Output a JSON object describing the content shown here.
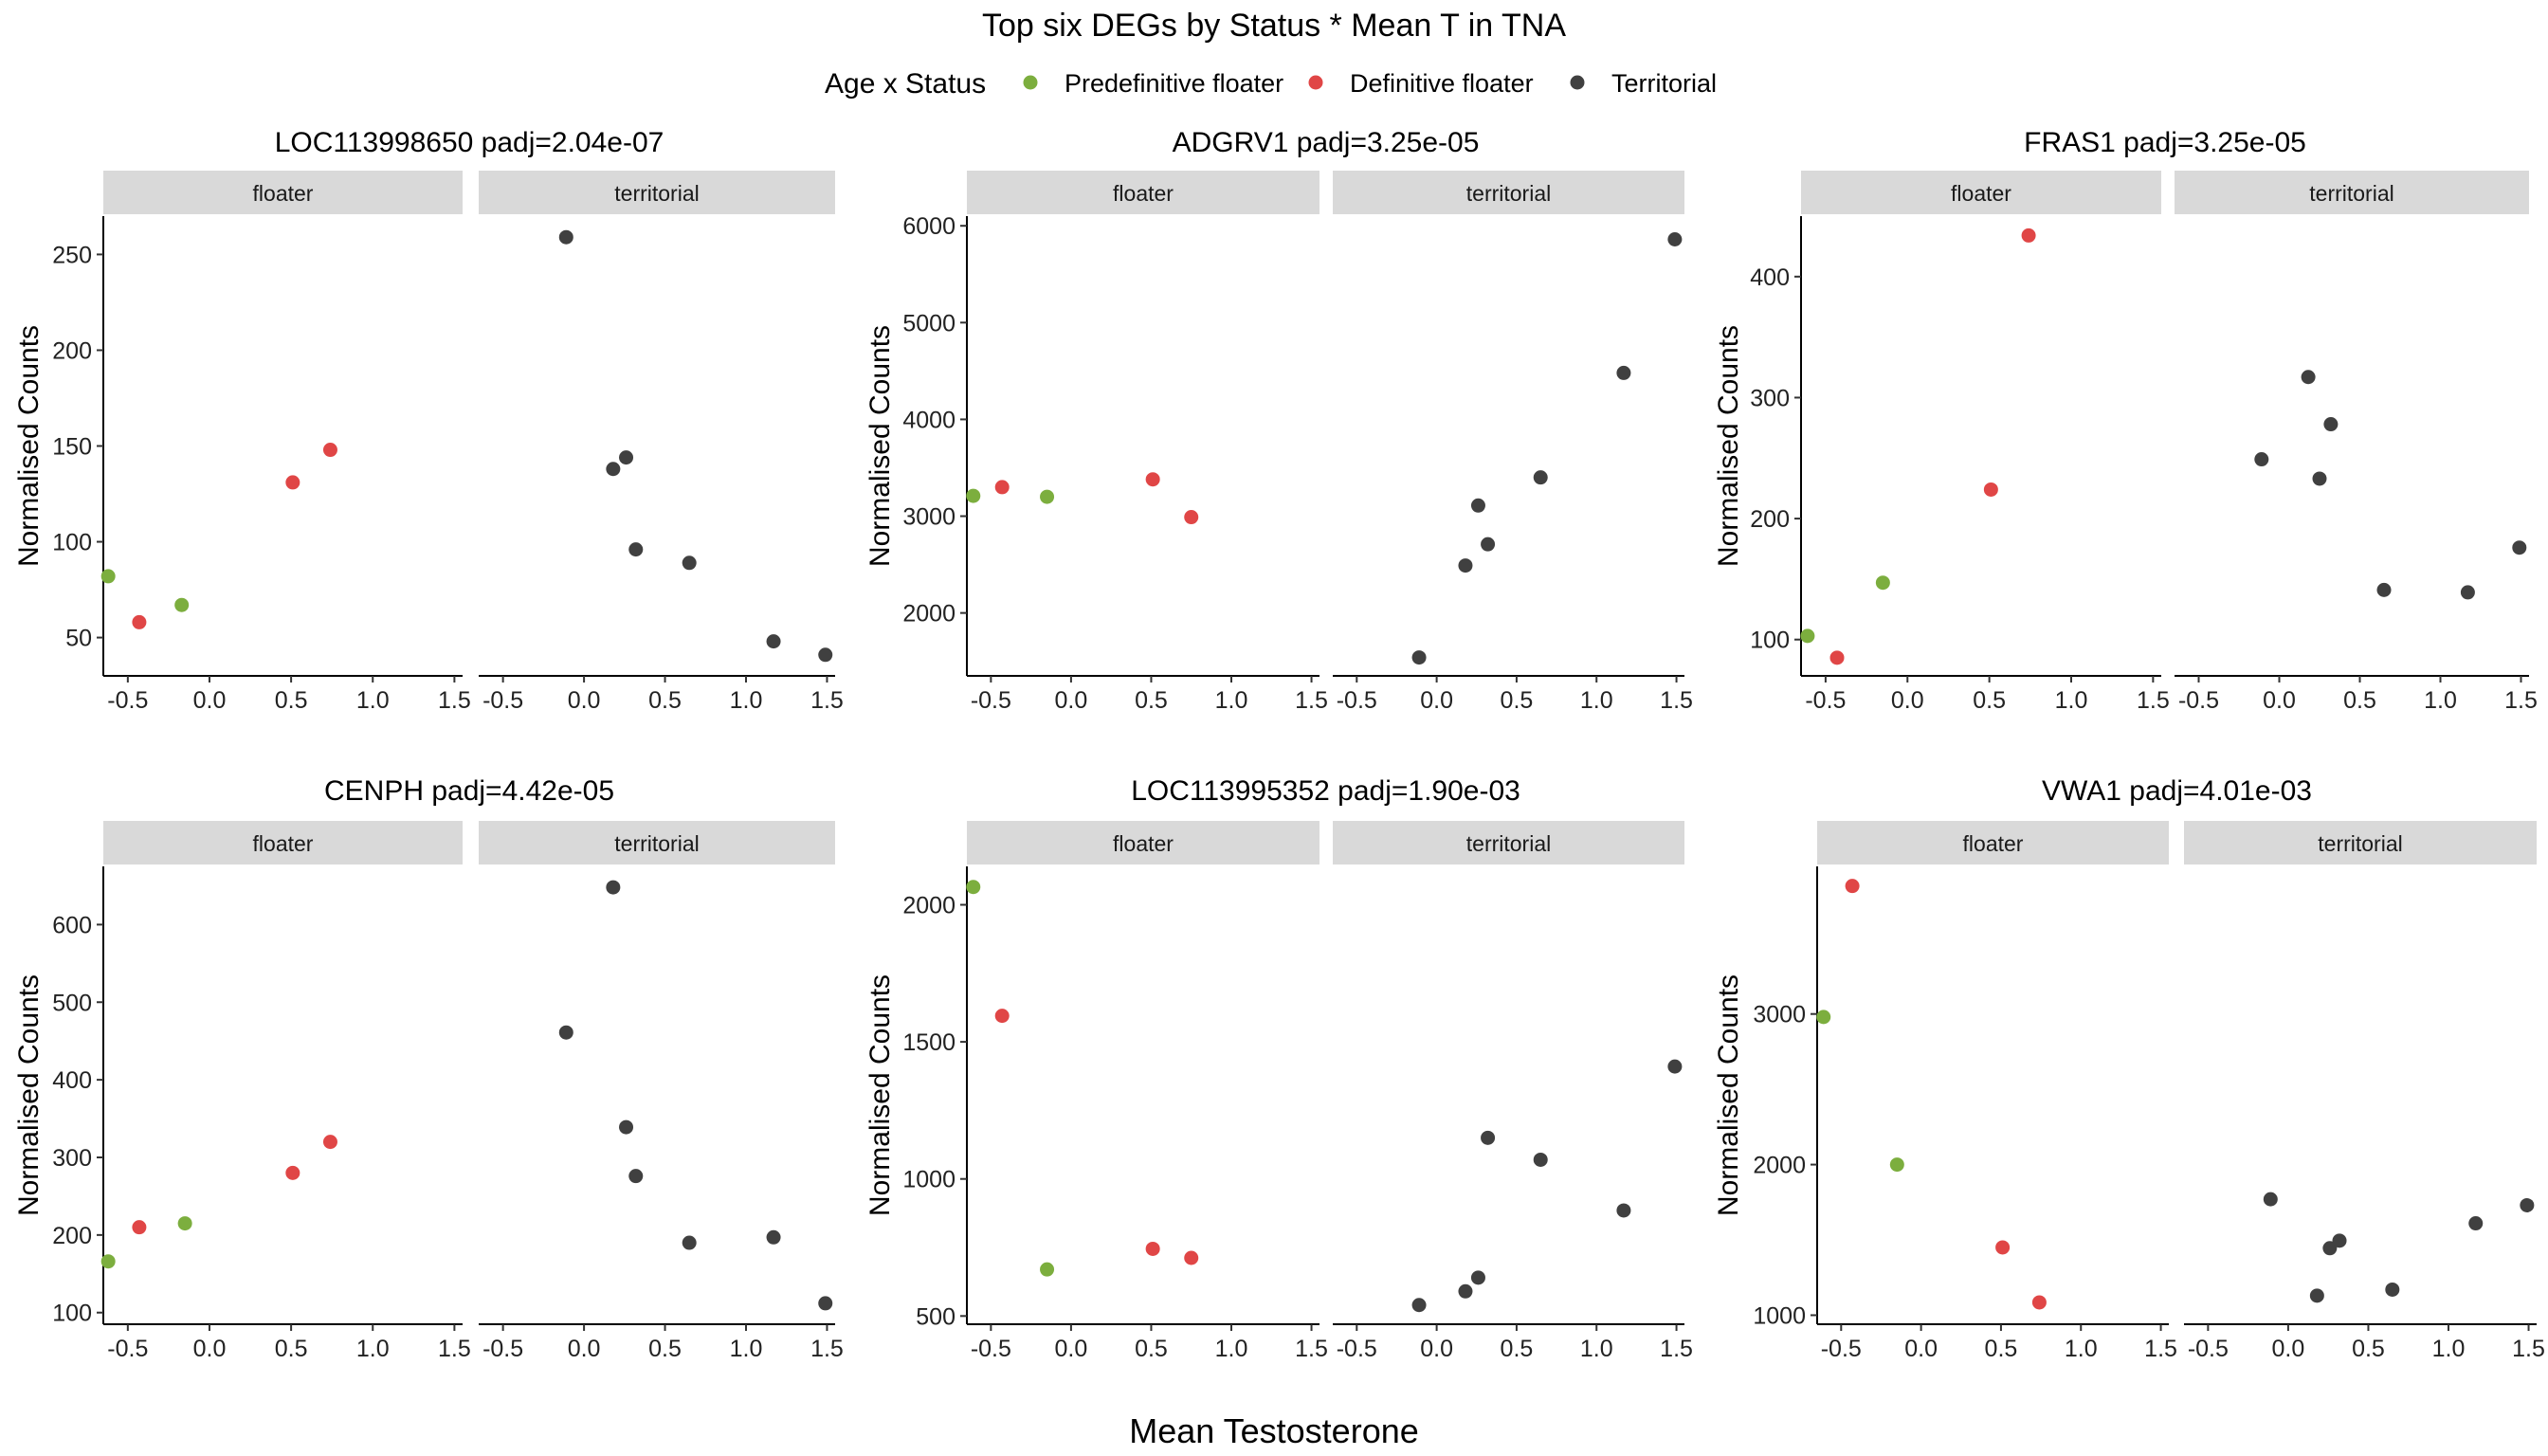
{
  "title": "Top six DEGs by Status * Mean T in TNA",
  "legend": {
    "title": "Age x Status",
    "placement": "top-center",
    "items": [
      {
        "label": "Predefinitive floater",
        "color": "#7cae3e"
      },
      {
        "label": "Definitive floater",
        "color": "#e04646"
      },
      {
        "label": "Territorial",
        "color": "#404040"
      }
    ]
  },
  "xlabel": "Mean Testosterone",
  "chart_data": [
    {
      "type": "scatter",
      "title": "LOC113998650 padj=2.04e-07",
      "ylabel": "Normalised Counts",
      "xlabel": "Mean Testosterone",
      "xlim": [
        -0.65,
        1.55
      ],
      "xticks": [
        -0.5,
        0.0,
        0.5,
        1.0,
        1.5
      ],
      "xtick_labels": [
        "-0.5",
        "0.0",
        "0.5",
        "1.0",
        "1.5"
      ],
      "ylim": [
        30,
        270
      ],
      "yticks": [
        50,
        100,
        150,
        200,
        250
      ],
      "facets": [
        {
          "label": "floater",
          "points": [
            {
              "x": -0.62,
              "y": 82,
              "group": "Predefinitive floater"
            },
            {
              "x": -0.43,
              "y": 58,
              "group": "Definitive floater"
            },
            {
              "x": -0.17,
              "y": 67,
              "group": "Predefinitive floater"
            },
            {
              "x": 0.51,
              "y": 131,
              "group": "Definitive floater"
            },
            {
              "x": 0.74,
              "y": 148,
              "group": "Definitive floater"
            }
          ]
        },
        {
          "label": "territorial",
          "points": [
            {
              "x": -0.11,
              "y": 259,
              "group": "Territorial"
            },
            {
              "x": 0.18,
              "y": 138,
              "group": "Territorial"
            },
            {
              "x": 0.26,
              "y": 144,
              "group": "Territorial"
            },
            {
              "x": 0.32,
              "y": 96,
              "group": "Territorial"
            },
            {
              "x": 0.65,
              "y": 89,
              "group": "Territorial"
            },
            {
              "x": 1.17,
              "y": 48,
              "group": "Territorial"
            },
            {
              "x": 1.49,
              "y": 41,
              "group": "Territorial"
            }
          ]
        }
      ]
    },
    {
      "type": "scatter",
      "title": "ADGRV1 padj=3.25e-05",
      "ylabel": "Normalised Counts",
      "xlabel": "Mean Testosterone",
      "xlim": [
        -0.65,
        1.55
      ],
      "xticks": [
        -0.5,
        0.0,
        0.5,
        1.0,
        1.5
      ],
      "xtick_labels": [
        "-0.5",
        "0.0",
        "0.5",
        "1.0",
        "1.5"
      ],
      "ylim": [
        1350,
        6100
      ],
      "yticks": [
        2000,
        3000,
        4000,
        5000,
        6000
      ],
      "facets": [
        {
          "label": "floater",
          "points": [
            {
              "x": -0.61,
              "y": 3210,
              "group": "Predefinitive floater"
            },
            {
              "x": -0.43,
              "y": 3300,
              "group": "Definitive floater"
            },
            {
              "x": -0.15,
              "y": 3200,
              "group": "Predefinitive floater"
            },
            {
              "x": 0.51,
              "y": 3380,
              "group": "Definitive floater"
            },
            {
              "x": 0.75,
              "y": 2990,
              "group": "Definitive floater"
            }
          ]
        },
        {
          "label": "territorial",
          "points": [
            {
              "x": -0.11,
              "y": 1540,
              "group": "Territorial"
            },
            {
              "x": 0.18,
              "y": 2490,
              "group": "Territorial"
            },
            {
              "x": 0.26,
              "y": 3110,
              "group": "Territorial"
            },
            {
              "x": 0.32,
              "y": 2710,
              "group": "Territorial"
            },
            {
              "x": 0.65,
              "y": 3400,
              "group": "Territorial"
            },
            {
              "x": 1.17,
              "y": 4480,
              "group": "Territorial"
            },
            {
              "x": 1.49,
              "y": 5860,
              "group": "Territorial"
            }
          ]
        }
      ]
    },
    {
      "type": "scatter",
      "title": "FRAS1 padj=3.25e-05",
      "ylabel": "Normalised Counts",
      "xlabel": "Mean Testosterone",
      "xlim": [
        -0.65,
        1.55
      ],
      "xticks": [
        -0.5,
        0.0,
        0.5,
        1.0,
        1.5
      ],
      "xtick_labels": [
        "-0.5",
        "0.0",
        "0.5",
        "1.0",
        "1.5"
      ],
      "ylim": [
        70,
        450
      ],
      "yticks": [
        100,
        200,
        300,
        400
      ],
      "facets": [
        {
          "label": "floater",
          "points": [
            {
              "x": -0.61,
              "y": 103,
              "group": "Predefinitive floater"
            },
            {
              "x": -0.43,
              "y": 85,
              "group": "Definitive floater"
            },
            {
              "x": -0.15,
              "y": 147,
              "group": "Predefinitive floater"
            },
            {
              "x": 0.51,
              "y": 224,
              "group": "Definitive floater"
            },
            {
              "x": 0.74,
              "y": 434,
              "group": "Definitive floater"
            }
          ]
        },
        {
          "label": "territorial",
          "points": [
            {
              "x": -0.11,
              "y": 249,
              "group": "Territorial"
            },
            {
              "x": 0.18,
              "y": 317,
              "group": "Territorial"
            },
            {
              "x": 0.25,
              "y": 233,
              "group": "Territorial"
            },
            {
              "x": 0.32,
              "y": 278,
              "group": "Territorial"
            },
            {
              "x": 0.65,
              "y": 141,
              "group": "Territorial"
            },
            {
              "x": 1.17,
              "y": 139,
              "group": "Territorial"
            },
            {
              "x": 1.49,
              "y": 176,
              "group": "Territorial"
            }
          ]
        }
      ]
    },
    {
      "type": "scatter",
      "title": "CENPH padj=4.42e-05",
      "ylabel": "Normalised Counts",
      "xlabel": "Mean Testosterone",
      "xlim": [
        -0.65,
        1.55
      ],
      "xticks": [
        -0.5,
        0.0,
        0.5,
        1.0,
        1.5
      ],
      "xtick_labels": [
        "-0.5",
        "0.0",
        "0.5",
        "1.0",
        "1.5"
      ],
      "ylim": [
        85,
        675
      ],
      "yticks": [
        100,
        200,
        300,
        400,
        500,
        600
      ],
      "facets": [
        {
          "label": "floater",
          "points": [
            {
              "x": -0.62,
              "y": 166,
              "group": "Predefinitive floater"
            },
            {
              "x": -0.43,
              "y": 210,
              "group": "Definitive floater"
            },
            {
              "x": -0.15,
              "y": 215,
              "group": "Predefinitive floater"
            },
            {
              "x": 0.51,
              "y": 280,
              "group": "Definitive floater"
            },
            {
              "x": 0.74,
              "y": 320,
              "group": "Definitive floater"
            }
          ]
        },
        {
          "label": "territorial",
          "points": [
            {
              "x": -0.11,
              "y": 461,
              "group": "Territorial"
            },
            {
              "x": 0.18,
              "y": 648,
              "group": "Territorial"
            },
            {
              "x": 0.26,
              "y": 339,
              "group": "Territorial"
            },
            {
              "x": 0.32,
              "y": 276,
              "group": "Territorial"
            },
            {
              "x": 0.65,
              "y": 190,
              "group": "Territorial"
            },
            {
              "x": 1.17,
              "y": 197,
              "group": "Territorial"
            },
            {
              "x": 1.49,
              "y": 112,
              "group": "Territorial"
            }
          ]
        }
      ]
    },
    {
      "type": "scatter",
      "title": "LOC113995352 padj=1.90e-03",
      "ylabel": "Normalised Counts",
      "xlabel": "Mean Testosterone",
      "xlim": [
        -0.65,
        1.55
      ],
      "xticks": [
        -0.5,
        0.0,
        0.5,
        1.0,
        1.5
      ],
      "xtick_labels": [
        "-0.5",
        "0.0",
        "0.5",
        "1.0",
        "1.5"
      ],
      "ylim": [
        470,
        2140
      ],
      "yticks": [
        500,
        1000,
        1500,
        2000
      ],
      "facets": [
        {
          "label": "floater",
          "points": [
            {
              "x": -0.61,
              "y": 2065,
              "group": "Predefinitive floater"
            },
            {
              "x": -0.43,
              "y": 1595,
              "group": "Definitive floater"
            },
            {
              "x": -0.15,
              "y": 670,
              "group": "Predefinitive floater"
            },
            {
              "x": 0.51,
              "y": 745,
              "group": "Definitive floater"
            },
            {
              "x": 0.75,
              "y": 712,
              "group": "Definitive floater"
            }
          ]
        },
        {
          "label": "territorial",
          "points": [
            {
              "x": -0.11,
              "y": 540,
              "group": "Territorial"
            },
            {
              "x": 0.18,
              "y": 590,
              "group": "Territorial"
            },
            {
              "x": 0.26,
              "y": 640,
              "group": "Territorial"
            },
            {
              "x": 0.32,
              "y": 1150,
              "group": "Territorial"
            },
            {
              "x": 0.65,
              "y": 1070,
              "group": "Territorial"
            },
            {
              "x": 1.17,
              "y": 885,
              "group": "Territorial"
            },
            {
              "x": 1.49,
              "y": 1410,
              "group": "Territorial"
            }
          ]
        }
      ]
    },
    {
      "type": "scatter",
      "title": "VWA1 padj=4.01e-03",
      "ylabel": "Normalised Counts",
      "xlabel": "Mean Testosterone",
      "xlim": [
        -0.65,
        1.55
      ],
      "xticks": [
        -0.5,
        0.0,
        0.5,
        1.0,
        1.5
      ],
      "xtick_labels": [
        "-0.5",
        "0.0",
        "0.5",
        "1.0",
        "1.5"
      ],
      "ylim": [
        940,
        3980
      ],
      "yticks": [
        1000,
        2000,
        3000
      ],
      "facets": [
        {
          "label": "floater",
          "points": [
            {
              "x": -0.61,
              "y": 2980,
              "group": "Predefinitive floater"
            },
            {
              "x": -0.43,
              "y": 3850,
              "group": "Definitive floater"
            },
            {
              "x": -0.15,
              "y": 2000,
              "group": "Predefinitive floater"
            },
            {
              "x": 0.51,
              "y": 1450,
              "group": "Definitive floater"
            },
            {
              "x": 0.74,
              "y": 1085,
              "group": "Definitive floater"
            }
          ]
        },
        {
          "label": "territorial",
          "points": [
            {
              "x": -0.11,
              "y": 1770,
              "group": "Territorial"
            },
            {
              "x": 0.18,
              "y": 1130,
              "group": "Territorial"
            },
            {
              "x": 0.26,
              "y": 1445,
              "group": "Territorial"
            },
            {
              "x": 0.32,
              "y": 1495,
              "group": "Territorial"
            },
            {
              "x": 0.65,
              "y": 1170,
              "group": "Territorial"
            },
            {
              "x": 1.17,
              "y": 1610,
              "group": "Territorial"
            },
            {
              "x": 1.49,
              "y": 1730,
              "group": "Territorial"
            }
          ]
        }
      ]
    }
  ]
}
